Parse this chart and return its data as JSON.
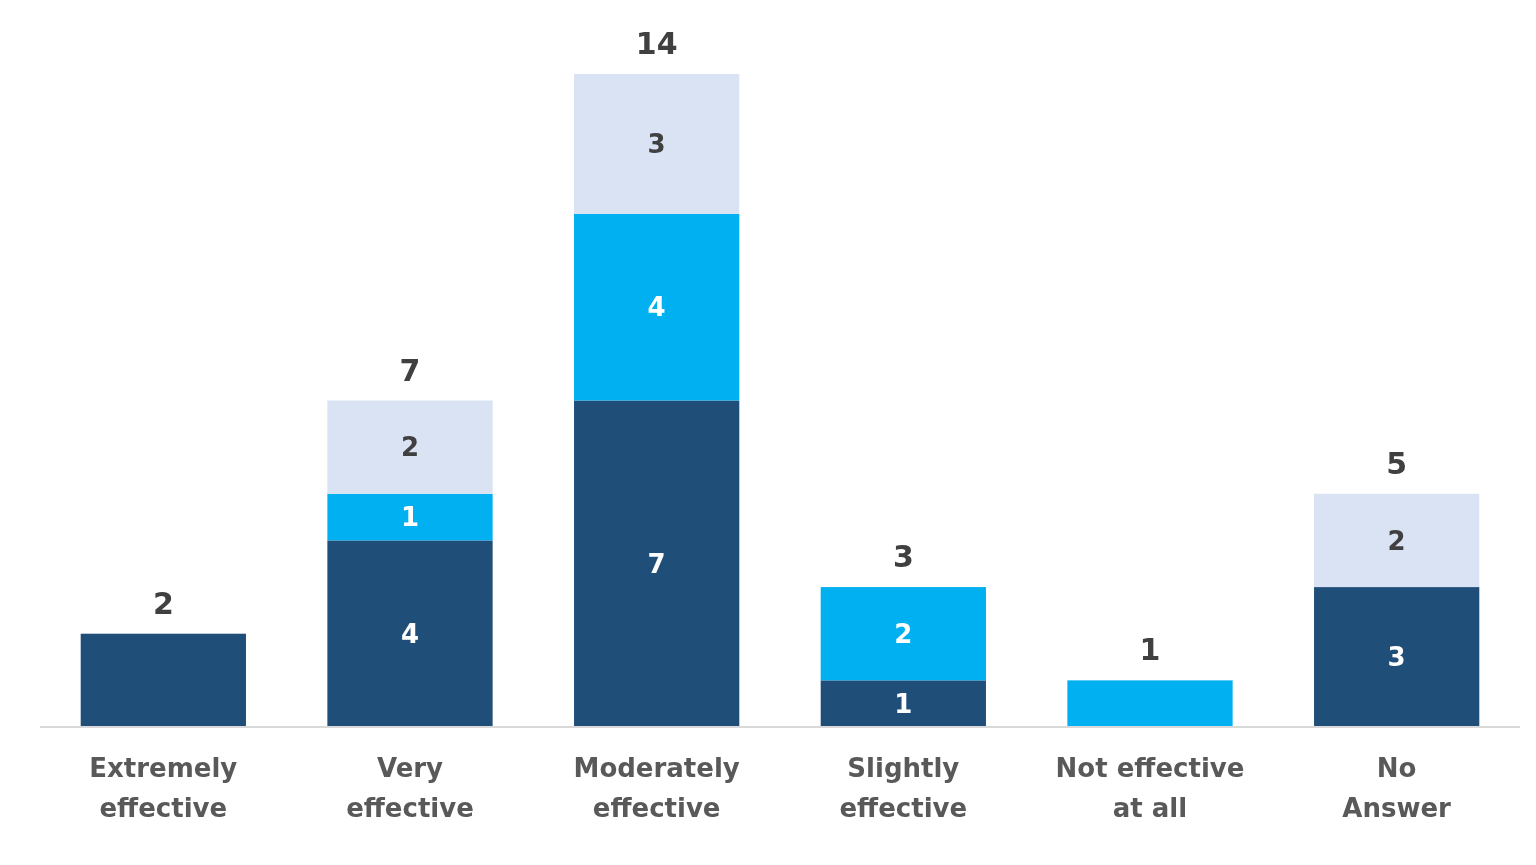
{
  "chart_data": {
    "type": "bar",
    "stacked": true,
    "categories": [
      "Extremely effective",
      "Very effective",
      "Moderately effective",
      "Slightly effective",
      "Not effective at all",
      "No Answer"
    ],
    "series": [
      {
        "color": "#1f4e79",
        "values": [
          2,
          4,
          7,
          1,
          null,
          3
        ],
        "value_labels": [
          null,
          "4",
          "7",
          "1",
          null,
          "3"
        ]
      },
      {
        "color": "#00b0f0",
        "values": [
          null,
          1,
          4,
          2,
          1,
          null
        ],
        "value_labels": [
          null,
          "1",
          "4",
          "2",
          null,
          null
        ]
      },
      {
        "color": "#dae3f3",
        "values": [
          null,
          2,
          3,
          null,
          null,
          2
        ],
        "value_labels": [
          null,
          "2",
          "3",
          null,
          null,
          "2"
        ]
      }
    ],
    "totals": [
      "2",
      "7",
      "14",
      "3",
      "1",
      "5"
    ]
  }
}
